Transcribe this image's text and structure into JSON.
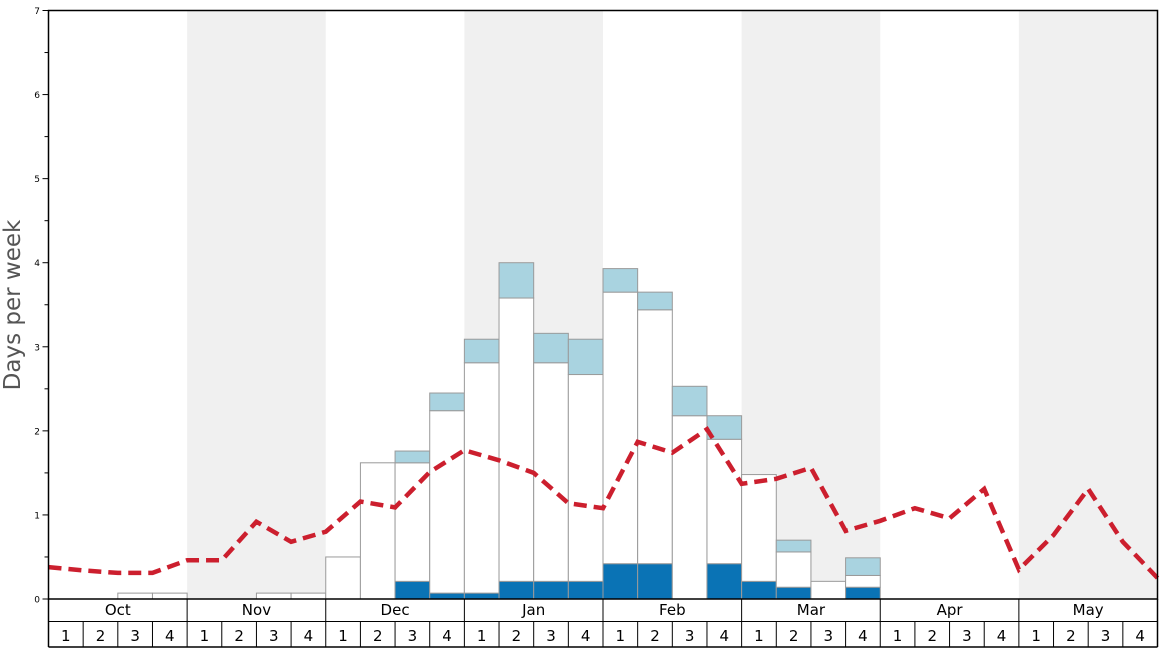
{
  "chart_data": {
    "type": "bar",
    "ylabel": "Days per week",
    "ylim": [
      0,
      7
    ],
    "y_major_ticks": [
      "0",
      "1",
      "2",
      "3",
      "4",
      "5",
      "6",
      "7"
    ],
    "months": [
      "Oct",
      "Nov",
      "Dec",
      "Jan",
      "Feb",
      "Mar",
      "Apr",
      "May"
    ],
    "week_labels": [
      "1",
      "2",
      "3",
      "4"
    ],
    "grid": false,
    "shaded_months": [
      "Nov",
      "Jan",
      "Mar",
      "May"
    ],
    "colors": {
      "dark": "#0a73b5",
      "light": "#a9d3e0",
      "base": "#ffffff",
      "bar_outline": "#9a9a9a",
      "line": "#cc1f2e",
      "shade": "#f0f0f0",
      "axis": "#000000"
    },
    "series": [
      {
        "key": "dark",
        "values": [
          0,
          0,
          0,
          0,
          0,
          0,
          0,
          0,
          0,
          0,
          0.21,
          0.07,
          0.07,
          0.21,
          0.21,
          0.21,
          0.42,
          0.42,
          0,
          0.42,
          0.21,
          0.14,
          0,
          0.14,
          0,
          0,
          0,
          0,
          0,
          0,
          0,
          0
        ]
      },
      {
        "key": "light",
        "values": [
          0,
          0,
          0,
          0,
          0,
          0,
          0,
          0,
          0,
          0,
          0.14,
          0.21,
          0.28,
          0.42,
          0.35,
          0.42,
          0.28,
          0.21,
          0.35,
          0.28,
          0,
          0.14,
          0,
          0.21,
          0,
          0,
          0,
          0,
          0,
          0,
          0,
          0
        ]
      },
      {
        "key": "base",
        "values": [
          0,
          0,
          0.07,
          0.07,
          0,
          0,
          0.07,
          0.07,
          0.5,
          1.62,
          1.41,
          2.17,
          2.74,
          3.37,
          2.6,
          2.46,
          3.23,
          3.02,
          2.18,
          1.48,
          1.27,
          0.42,
          0.21,
          0.14,
          0,
          0,
          0,
          0,
          0,
          0,
          0,
          0
        ]
      }
    ],
    "line_values": [
      0.38,
      0.34,
      0.31,
      0.31,
      0.46,
      0.46,
      0.92,
      0.68,
      0.8,
      1.16,
      1.09,
      1.51,
      1.77,
      1.65,
      1.5,
      1.14,
      1.08,
      1.87,
      1.74,
      2.02,
      1.37,
      1.43,
      1.56,
      0.81,
      0.93,
      1.08,
      0.96,
      1.31,
      0.35,
      0.76,
      1.31,
      0.68,
      0.25
    ]
  }
}
